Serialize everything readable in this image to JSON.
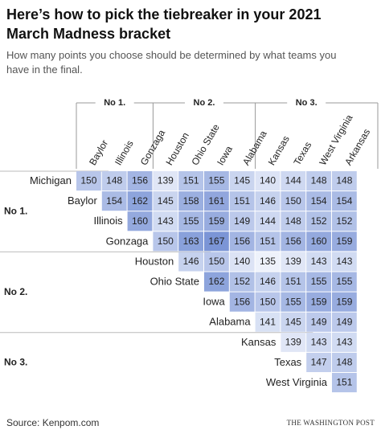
{
  "chart_data": {
    "type": "heatmap",
    "title": "Here’s how to pick the tiebreaker in your 2021 March Madness bracket",
    "subtitle": "How many points you choose should be determined by what teams you have in the final.",
    "columns": [
      "Baylor",
      "Illinois",
      "Gonzaga",
      "Houston",
      "Ohio State",
      "Iowa",
      "Alabama",
      "Kansas",
      "Texas",
      "West Virginia",
      "Arkansas"
    ],
    "rows": [
      "Michigan",
      "Baylor",
      "Illinois",
      "Gonzaga",
      "Houston",
      "Ohio State",
      "Iowa",
      "Alabama",
      "Kansas",
      "Texas",
      "West Virginia"
    ],
    "values": [
      [
        150,
        148,
        156,
        139,
        151,
        155,
        145,
        140,
        144,
        148,
        148
      ],
      [
        null,
        154,
        162,
        145,
        158,
        161,
        151,
        146,
        150,
        154,
        154
      ],
      [
        null,
        null,
        160,
        143,
        155,
        159,
        149,
        144,
        148,
        152,
        152
      ],
      [
        null,
        null,
        null,
        150,
        163,
        167,
        156,
        151,
        156,
        160,
        159
      ],
      [
        null,
        null,
        null,
        null,
        146,
        150,
        140,
        135,
        139,
        143,
        143
      ],
      [
        null,
        null,
        null,
        null,
        null,
        162,
        152,
        146,
        151,
        155,
        155
      ],
      [
        null,
        null,
        null,
        null,
        null,
        null,
        156,
        150,
        155,
        159,
        159
      ],
      [
        null,
        null,
        null,
        null,
        null,
        null,
        null,
        141,
        145,
        149,
        149
      ],
      [
        null,
        null,
        null,
        null,
        null,
        null,
        null,
        null,
        139,
        143,
        143
      ],
      [
        null,
        null,
        null,
        null,
        null,
        null,
        null,
        null,
        null,
        147,
        148
      ],
      [
        null,
        null,
        null,
        null,
        null,
        null,
        null,
        null,
        null,
        null,
        151
      ]
    ],
    "column_groups": [
      {
        "label": "No 1.",
        "members": [
          "Baylor",
          "Illinois",
          "Gonzaga"
        ]
      },
      {
        "label": "No 2.",
        "members": [
          "Houston",
          "Ohio State",
          "Iowa",
          "Alabama"
        ]
      },
      {
        "label": "No 3.",
        "members": [
          "Kansas",
          "Texas",
          "West Virginia",
          "Arkansas"
        ]
      }
    ],
    "row_groups": [
      {
        "label": "No 1.",
        "members": [
          "Michigan",
          "Baylor",
          "Illinois",
          "Gonzaga"
        ]
      },
      {
        "label": "No 2.",
        "members": [
          "Houston",
          "Ohio State",
          "Iowa",
          "Alabama"
        ]
      },
      {
        "label": "No 3.",
        "members": [
          "Kansas",
          "Texas",
          "West Virginia"
        ]
      }
    ],
    "color_scale": [
      "#eef2fb",
      "#7b95d6"
    ],
    "source": "Source: Kenpom.com",
    "credit": "THE WASHINGTON POST"
  }
}
